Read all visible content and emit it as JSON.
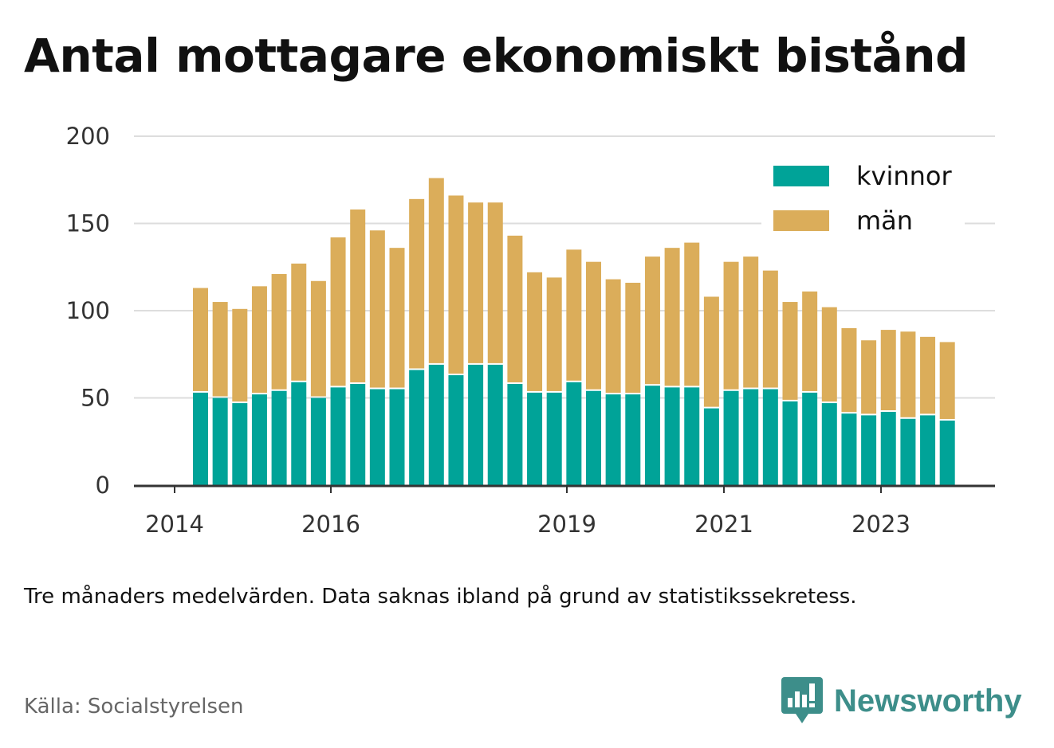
{
  "title": "Antal mottagare ekonomiskt bistånd",
  "note": "Tre månaders medelvärden. Data saknas ibland på grund av statistikssekretess.",
  "source": "Källa: Socialstyrelsen",
  "brand": {
    "name": "Newsworthy",
    "icon": "newsworthy-logo-icon",
    "color": "#3d8e8a"
  },
  "colors": {
    "kvinnor": "#00a398",
    "man": "#dbad5a",
    "grid": "#dddddd",
    "axis": "#333333"
  },
  "chart_data": {
    "type": "bar",
    "stacked": true,
    "x_tick_labels": [
      "2014",
      "2016",
      "2019",
      "2021",
      "2023"
    ],
    "y_ticks": [
      "0",
      "50",
      "100",
      "150",
      "200"
    ],
    "ylim": [
      0,
      200
    ],
    "legend_position": "top-right",
    "grid": true,
    "series": [
      {
        "name": "kvinnor",
        "values": [
          53,
          50,
          47,
          52,
          54,
          59,
          50,
          56,
          58,
          55,
          55,
          66,
          69,
          63,
          69,
          69,
          58,
          53,
          53,
          59,
          54,
          52,
          52,
          57,
          56,
          56,
          44,
          54,
          55,
          55,
          48,
          53,
          47,
          41,
          40,
          42,
          38,
          40,
          37
        ]
      },
      {
        "name": "män",
        "values": [
          60,
          55,
          54,
          62,
          67,
          68,
          67,
          86,
          100,
          91,
          81,
          98,
          107,
          103,
          93,
          93,
          85,
          69,
          66,
          76,
          74,
          66,
          64,
          74,
          80,
          83,
          64,
          74,
          76,
          68,
          57,
          58,
          55,
          49,
          43,
          47,
          50,
          45,
          45
        ]
      }
    ]
  }
}
